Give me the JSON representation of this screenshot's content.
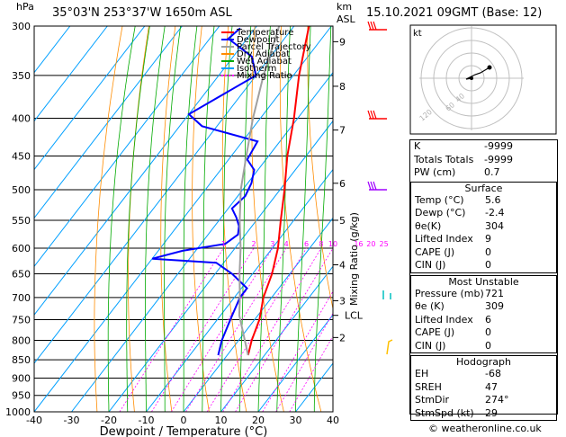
{
  "header": {
    "location": "35°03'N  253°37'W  1650m  ASL",
    "datetime": "15.10.2021  09GMT  (Base: 12)",
    "hpa_label": "hPa",
    "km_label": "km",
    "asl_label": "ASL",
    "footer": "© weatheronline.co.uk"
  },
  "colors": {
    "temperature": "#ff0000",
    "dewpoint": "#0000ff",
    "parcel": "#a0a0a0",
    "dry_adiabat": "#ff8c00",
    "wet_adiabat": "#00aa00",
    "isotherm": "#00a0ff",
    "mixing_ratio": "#ff00ff",
    "wind_high": "#ff0000",
    "wind_mid": "#a000ff",
    "wind_low1": "#00c0c0",
    "wind_low2": "#ffc000"
  },
  "chart_data": {
    "type": "line",
    "title": "",
    "xlabel": "Dewpoint / Temperature (°C)",
    "ylabel": "hPa",
    "xlim": [
      -40,
      40
    ],
    "ylim": [
      300,
      1000
    ],
    "y_scale": "log-pressure",
    "skew": "skew-T",
    "x_ticks": [
      "-40",
      "-30",
      "-20",
      "-10",
      "0",
      "10",
      "20",
      "30",
      "40"
    ],
    "y_ticks": [
      "300",
      "350",
      "400",
      "450",
      "500",
      "550",
      "600",
      "650",
      "700",
      "750",
      "800",
      "850",
      "900",
      "950",
      "1000"
    ],
    "km_ticks": [
      {
        "p": 315,
        "label": "9"
      },
      {
        "p": 362,
        "label": "8"
      },
      {
        "p": 415,
        "label": "7"
      },
      {
        "p": 490,
        "label": "6"
      },
      {
        "p": 550,
        "label": "5"
      },
      {
        "p": 632,
        "label": "4"
      },
      {
        "p": 707,
        "label": "3"
      },
      {
        "p": 793,
        "label": "2"
      }
    ],
    "lcl_label": "LCL",
    "lcl_p": 740,
    "mixing_ratio_axis_label": "Mixing Ratio (g/kg)",
    "mixing_ratio_labels": [
      "1",
      "2",
      "3",
      "4",
      "6",
      "8",
      "10",
      "16",
      "20",
      "25"
    ],
    "legend": [
      "Temperature",
      "Dewpoint",
      "Parcel Trajectory",
      "Dry Adiabat",
      "Wet Adiabat",
      "Isotherm",
      "Mixing Ratio"
    ],
    "series": [
      {
        "name": "Temperature",
        "points": [
          [
            838,
            5.6
          ],
          [
            800,
            3.5
          ],
          [
            750,
            1.3
          ],
          [
            700,
            -2.2
          ],
          [
            650,
            -4.8
          ],
          [
            600,
            -8.5
          ],
          [
            550,
            -13.5
          ],
          [
            500,
            -18.8
          ],
          [
            450,
            -25
          ],
          [
            400,
            -31
          ],
          [
            350,
            -38.5
          ],
          [
            300,
            -46
          ]
        ]
      },
      {
        "name": "Dewpoint",
        "points": [
          [
            838,
            -2.4
          ],
          [
            800,
            -4.5
          ],
          [
            750,
            -6.5
          ],
          [
            700,
            -8.5
          ],
          [
            680,
            -8.5
          ],
          [
            650,
            -15.5
          ],
          [
            628,
            -22
          ],
          [
            620,
            -40
          ],
          [
            605,
            -33.5
          ],
          [
            592,
            -23.5
          ],
          [
            575,
            -22
          ],
          [
            560,
            -23.5
          ],
          [
            545,
            -26
          ],
          [
            530,
            -29
          ],
          [
            510,
            -28
          ],
          [
            490,
            -29
          ],
          [
            470,
            -31
          ],
          [
            455,
            -35
          ],
          [
            430,
            -36
          ],
          [
            410,
            -54
          ],
          [
            395,
            -60
          ],
          [
            350,
            -50
          ],
          [
            330,
            -55
          ],
          [
            312,
            -65
          ],
          [
            302,
            -64
          ]
        ]
      },
      {
        "name": "Parcel Trajectory",
        "points": [
          [
            838,
            5.6
          ],
          [
            780,
            -0.5
          ],
          [
            740,
            -5
          ],
          [
            700,
            -8.5
          ],
          [
            650,
            -13.5
          ],
          [
            600,
            -18.5
          ],
          [
            550,
            -24.5
          ],
          [
            500,
            -30.5
          ],
          [
            450,
            -36
          ],
          [
            400,
            -42
          ],
          [
            350,
            -48
          ],
          [
            300,
            -54
          ]
        ]
      }
    ]
  },
  "hodograph": {
    "label": "kt",
    "ring_labels": [
      "40",
      "60",
      "120"
    ]
  },
  "table": {
    "general": [
      {
        "label": "K",
        "value": "-9999"
      },
      {
        "label": "Totals Totals",
        "value": "-9999"
      },
      {
        "label": "PW (cm)",
        "value": "0.7"
      }
    ],
    "surface": {
      "title": "Surface",
      "rows": [
        {
          "label": "Temp (°C)",
          "value": "5.6"
        },
        {
          "label": "Dewp (°C)",
          "value": "-2.4"
        },
        {
          "label": "θe(K)",
          "value": "304"
        },
        {
          "label": "Lifted Index",
          "value": "9"
        },
        {
          "label": "CAPE (J)",
          "value": "0"
        },
        {
          "label": "CIN (J)",
          "value": "0"
        }
      ]
    },
    "most_unstable": {
      "title": "Most Unstable",
      "rows": [
        {
          "label": "Pressure (mb)",
          "value": "721"
        },
        {
          "label": "θe (K)",
          "value": "309"
        },
        {
          "label": "Lifted Index",
          "value": "6"
        },
        {
          "label": "CAPE (J)",
          "value": "0"
        },
        {
          "label": "CIN (J)",
          "value": "0"
        }
      ]
    },
    "hodograph": {
      "title": "Hodograph",
      "rows": [
        {
          "label": "EH",
          "value": "-68"
        },
        {
          "label": "SREH",
          "value": "47"
        },
        {
          "label": "StmDir",
          "value": "274°"
        },
        {
          "label": "StmSpd (kt)",
          "value": "29"
        }
      ]
    }
  }
}
